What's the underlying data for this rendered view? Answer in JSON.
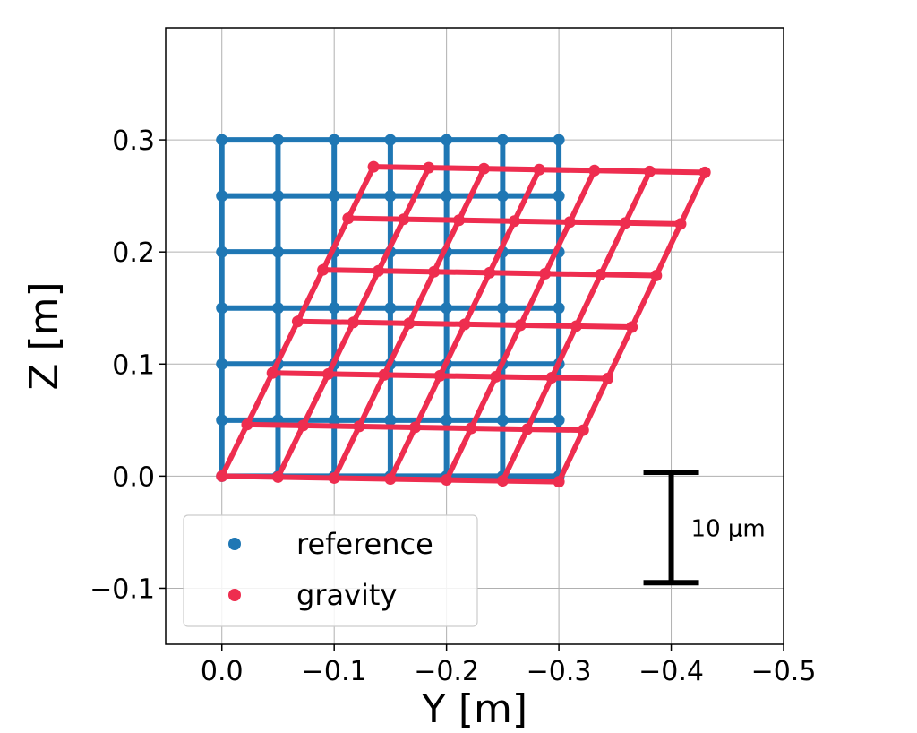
{
  "chart_data": {
    "type": "line",
    "title": "",
    "xlabel": "Y [m]",
    "ylabel": "Z [m]",
    "xlim": [
      0.05,
      -0.5
    ],
    "ylim": [
      -0.15,
      0.4
    ],
    "xaxis_inverted": true,
    "grid": true,
    "legend_location": "lower-left",
    "x_ticks": [
      "0.0",
      "−0.1",
      "−0.2",
      "−0.3",
      "−0.4",
      "−0.5"
    ],
    "x_tick_values": [
      0.0,
      -0.1,
      -0.2,
      -0.3,
      -0.4,
      -0.5
    ],
    "y_ticks": [
      "−0.1",
      "0.0",
      "0.1",
      "0.2",
      "0.3"
    ],
    "y_tick_values": [
      -0.1,
      0.0,
      0.1,
      0.2,
      0.3
    ],
    "scale_bar_label": "10 μm",
    "scale_bar_length": 0.0985,
    "scale_bar_x": -0.4,
    "scale_bar_y_range": [
      -0.095,
      0.0035
    ],
    "series": [
      {
        "name": "reference",
        "color": "#1f77b4",
        "grid_points": {
          "y": [
            0.0,
            -0.05,
            -0.1,
            -0.15,
            -0.2,
            -0.25,
            -0.3
          ],
          "z": [
            0.0,
            0.05,
            0.1,
            0.15,
            0.2,
            0.25,
            0.3
          ]
        }
      },
      {
        "name": "gravity",
        "color": "#ee2d4f",
        "grid_points": {
          "corners": {
            "bottom_left": [
              0.0,
              0.0
            ],
            "bottom_right": [
              -0.3,
              -0.005
            ],
            "top_left": [
              -0.135,
              0.276
            ],
            "top_right": [
              -0.43,
              0.271
            ]
          },
          "rows": 7,
          "cols": 7
        }
      }
    ]
  }
}
